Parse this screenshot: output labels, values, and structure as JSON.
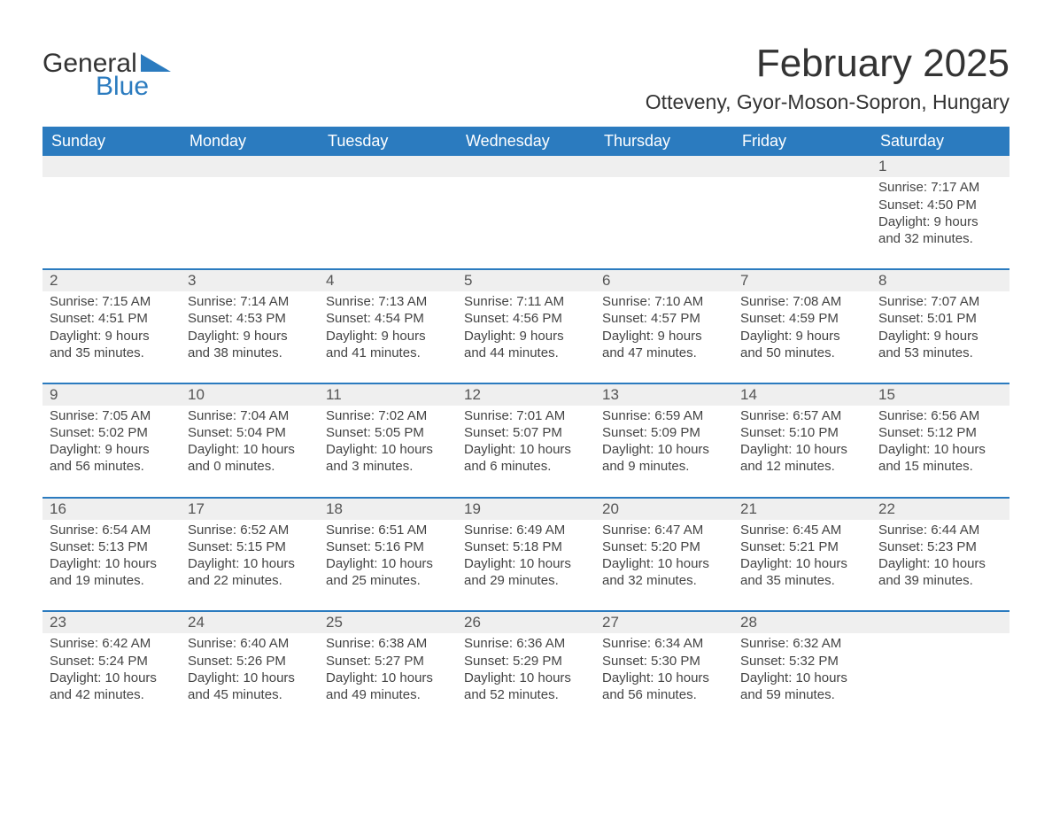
{
  "logo": {
    "word1": "General",
    "word2": "Blue",
    "brand_color": "#2b7bbf"
  },
  "header": {
    "month_title": "February 2025",
    "location": "Otteveny, Gyor-Moson-Sopron, Hungary"
  },
  "calendar": {
    "day_names": [
      "Sunday",
      "Monday",
      "Tuesday",
      "Wednesday",
      "Thursday",
      "Friday",
      "Saturday"
    ],
    "header_bg": "#2b7bbf",
    "header_fg": "#ffffff",
    "daynum_bg": "#efefef",
    "rule_color": "#2b7bbf",
    "text_color": "#444444",
    "title_fontsize": 44,
    "location_fontsize": 23,
    "dayname_fontsize": 18,
    "daynum_fontsize": 17,
    "cell_fontsize": 15,
    "weeks": [
      [
        null,
        null,
        null,
        null,
        null,
        null,
        {
          "n": 1,
          "sunrise": "7:17 AM",
          "sunset": "4:50 PM",
          "dl": "9 hours and 32 minutes."
        }
      ],
      [
        {
          "n": 2,
          "sunrise": "7:15 AM",
          "sunset": "4:51 PM",
          "dl": "9 hours and 35 minutes."
        },
        {
          "n": 3,
          "sunrise": "7:14 AM",
          "sunset": "4:53 PM",
          "dl": "9 hours and 38 minutes."
        },
        {
          "n": 4,
          "sunrise": "7:13 AM",
          "sunset": "4:54 PM",
          "dl": "9 hours and 41 minutes."
        },
        {
          "n": 5,
          "sunrise": "7:11 AM",
          "sunset": "4:56 PM",
          "dl": "9 hours and 44 minutes."
        },
        {
          "n": 6,
          "sunrise": "7:10 AM",
          "sunset": "4:57 PM",
          "dl": "9 hours and 47 minutes."
        },
        {
          "n": 7,
          "sunrise": "7:08 AM",
          "sunset": "4:59 PM",
          "dl": "9 hours and 50 minutes."
        },
        {
          "n": 8,
          "sunrise": "7:07 AM",
          "sunset": "5:01 PM",
          "dl": "9 hours and 53 minutes."
        }
      ],
      [
        {
          "n": 9,
          "sunrise": "7:05 AM",
          "sunset": "5:02 PM",
          "dl": "9 hours and 56 minutes."
        },
        {
          "n": 10,
          "sunrise": "7:04 AM",
          "sunset": "5:04 PM",
          "dl": "10 hours and 0 minutes."
        },
        {
          "n": 11,
          "sunrise": "7:02 AM",
          "sunset": "5:05 PM",
          "dl": "10 hours and 3 minutes."
        },
        {
          "n": 12,
          "sunrise": "7:01 AM",
          "sunset": "5:07 PM",
          "dl": "10 hours and 6 minutes."
        },
        {
          "n": 13,
          "sunrise": "6:59 AM",
          "sunset": "5:09 PM",
          "dl": "10 hours and 9 minutes."
        },
        {
          "n": 14,
          "sunrise": "6:57 AM",
          "sunset": "5:10 PM",
          "dl": "10 hours and 12 minutes."
        },
        {
          "n": 15,
          "sunrise": "6:56 AM",
          "sunset": "5:12 PM",
          "dl": "10 hours and 15 minutes."
        }
      ],
      [
        {
          "n": 16,
          "sunrise": "6:54 AM",
          "sunset": "5:13 PM",
          "dl": "10 hours and 19 minutes."
        },
        {
          "n": 17,
          "sunrise": "6:52 AM",
          "sunset": "5:15 PM",
          "dl": "10 hours and 22 minutes."
        },
        {
          "n": 18,
          "sunrise": "6:51 AM",
          "sunset": "5:16 PM",
          "dl": "10 hours and 25 minutes."
        },
        {
          "n": 19,
          "sunrise": "6:49 AM",
          "sunset": "5:18 PM",
          "dl": "10 hours and 29 minutes."
        },
        {
          "n": 20,
          "sunrise": "6:47 AM",
          "sunset": "5:20 PM",
          "dl": "10 hours and 32 minutes."
        },
        {
          "n": 21,
          "sunrise": "6:45 AM",
          "sunset": "5:21 PM",
          "dl": "10 hours and 35 minutes."
        },
        {
          "n": 22,
          "sunrise": "6:44 AM",
          "sunset": "5:23 PM",
          "dl": "10 hours and 39 minutes."
        }
      ],
      [
        {
          "n": 23,
          "sunrise": "6:42 AM",
          "sunset": "5:24 PM",
          "dl": "10 hours and 42 minutes."
        },
        {
          "n": 24,
          "sunrise": "6:40 AM",
          "sunset": "5:26 PM",
          "dl": "10 hours and 45 minutes."
        },
        {
          "n": 25,
          "sunrise": "6:38 AM",
          "sunset": "5:27 PM",
          "dl": "10 hours and 49 minutes."
        },
        {
          "n": 26,
          "sunrise": "6:36 AM",
          "sunset": "5:29 PM",
          "dl": "10 hours and 52 minutes."
        },
        {
          "n": 27,
          "sunrise": "6:34 AM",
          "sunset": "5:30 PM",
          "dl": "10 hours and 56 minutes."
        },
        {
          "n": 28,
          "sunrise": "6:32 AM",
          "sunset": "5:32 PM",
          "dl": "10 hours and 59 minutes."
        },
        null
      ]
    ],
    "labels": {
      "sunrise": "Sunrise: ",
      "sunset": "Sunset: ",
      "daylight": "Daylight: "
    }
  }
}
